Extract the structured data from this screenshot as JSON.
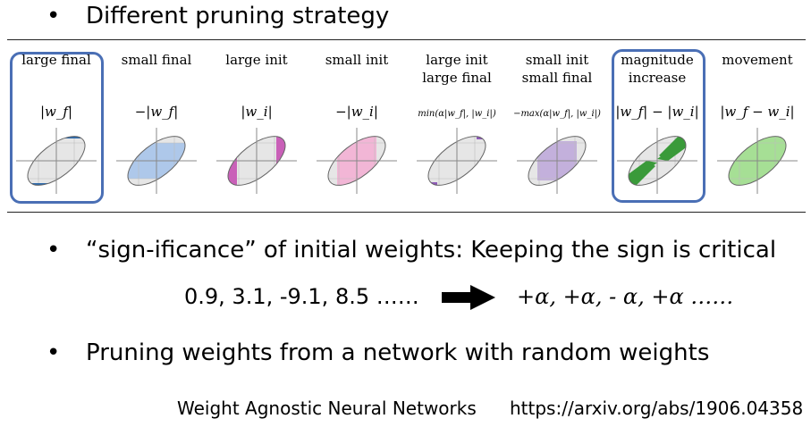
{
  "bullets": {
    "b1": "Different pruning strategy",
    "b2": "“sign-ificance” of initial weights: Keeping the sign is critical",
    "b3": "Pruning weights from a network with random weights"
  },
  "panels": [
    {
      "label_1": "large final",
      "label_2": "",
      "formula": "|w_f|",
      "color": "#2f6aaa",
      "highlighted": true
    },
    {
      "label_1": "small final",
      "label_2": "",
      "formula": "−|w_f|",
      "color": "#aec8ea",
      "highlighted": false
    },
    {
      "label_1": "large init",
      "label_2": "",
      "formula": "|w_i|",
      "color": "#c960b8",
      "highlighted": false
    },
    {
      "label_1": "small init",
      "label_2": "",
      "formula": "−|w_i|",
      "color": "#f2b6d6",
      "highlighted": false
    },
    {
      "label_1": "large init",
      "label_2": "large final",
      "formula": "min(α|w_f|, |w_i|)",
      "color": "#8e5bb8",
      "highlighted": false
    },
    {
      "label_1": "small init",
      "label_2": "small final",
      "formula": "−max(α|w_f|, |w_i|)",
      "color": "#c3b0dc",
      "highlighted": false
    },
    {
      "label_1": "magnitude",
      "label_2": "increase",
      "formula": "|w_f| − |w_i|",
      "color": "#3a9a3a",
      "highlighted": true
    },
    {
      "label_1": "movement",
      "label_2": "",
      "formula": "|w_f − w_i|",
      "color": "#a6df95",
      "highlighted": false
    }
  ],
  "sign_example": {
    "left": "0.9, 3.1, -9.1, 8.5 ……",
    "right": "+α, +α, - α, +α ……",
    "arrow": "right-arrow-icon"
  },
  "citation": {
    "paper": "Weight Agnostic Neural Networks",
    "url": "https://arxiv.org/abs/1906.04358"
  }
}
